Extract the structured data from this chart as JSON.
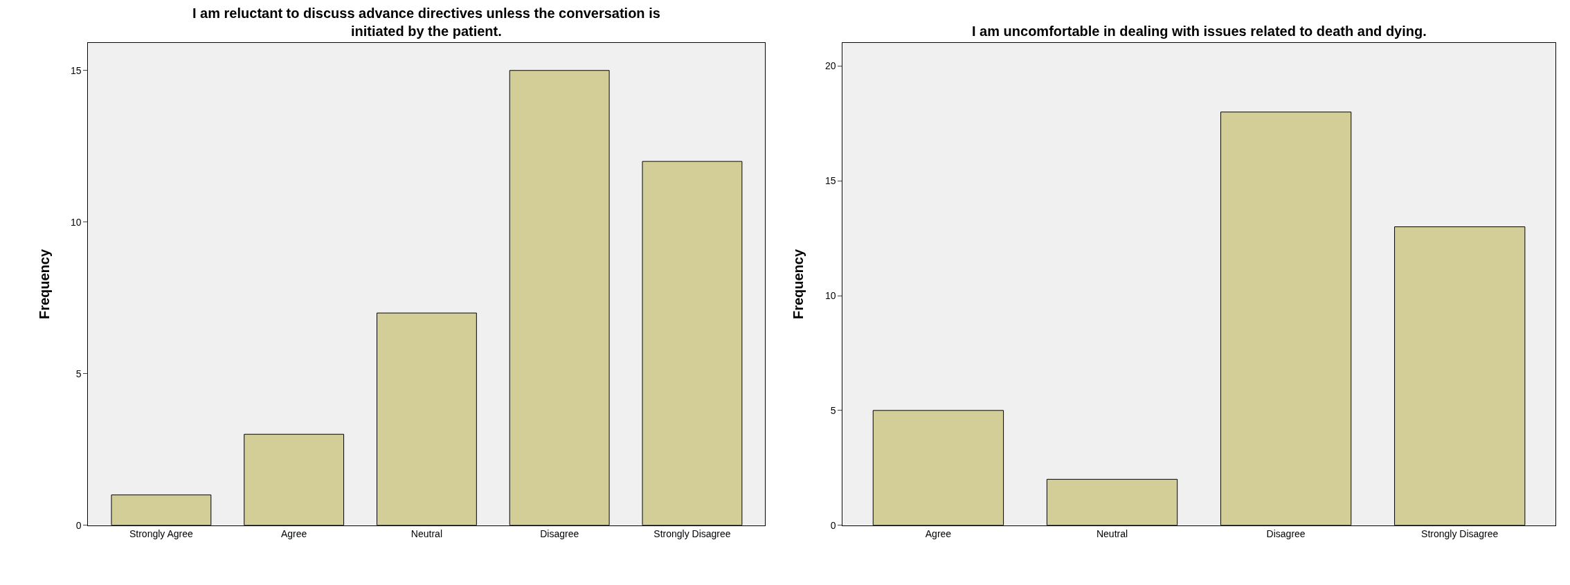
{
  "chart_data": [
    {
      "type": "bar",
      "title": "I am reluctant to discuss advance directives unless the conversation is initiated by the patient.",
      "ylabel": "Frequency",
      "categories": [
        "Strongly Agree",
        "Agree",
        "Neutral",
        "Disagree",
        "Strongly Disagree"
      ],
      "values": [
        1,
        3,
        7,
        15,
        12
      ],
      "color": "#d3ce97",
      "ylim": [
        0,
        15.9
      ],
      "yticks": [
        0,
        5,
        10,
        15
      ],
      "grid": false
    },
    {
      "type": "bar",
      "title": "I am uncomfortable in dealing with issues related to death and dying.",
      "ylabel": "Frequency",
      "categories": [
        "Agree",
        "Neutral",
        "Disagree",
        "Strongly Disagree"
      ],
      "values": [
        5,
        2,
        18,
        13
      ],
      "color": "#d3ce97",
      "ylim": [
        0,
        21
      ],
      "yticks": [
        0,
        5,
        10,
        15,
        20
      ],
      "grid": false
    }
  ]
}
